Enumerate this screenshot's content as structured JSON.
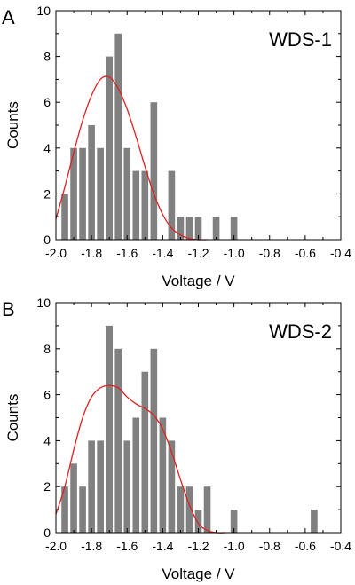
{
  "chart_data": [
    {
      "type": "bar",
      "panel_label": "A",
      "title": "WDS-1",
      "xlabel": "Voltage / V",
      "ylabel": "Counts",
      "xlim": [
        -2.0,
        -0.4
      ],
      "ylim": [
        0,
        10
      ],
      "xticks": [
        "-2.0",
        "-1.8",
        "-1.6",
        "-1.4",
        "-1.2",
        "-1.0",
        "-0.8",
        "-0.6",
        "-0.4"
      ],
      "yticks": [
        "0",
        "2",
        "4",
        "6",
        "8",
        "10"
      ],
      "bin_width": 0.05,
      "bar_color": "#808080",
      "fit_color": "#e02020",
      "series": [
        {
          "x": [
            -1.95,
            -1.9,
            -1.85,
            -1.8,
            -1.75,
            -1.7,
            -1.65,
            -1.6,
            -1.55,
            -1.5,
            -1.45,
            -1.35,
            -1.3,
            -1.25,
            -1.2,
            -1.1,
            -1.0
          ],
          "values": [
            2,
            4,
            4,
            5,
            4,
            8,
            9,
            4,
            3,
            3,
            6,
            3,
            1,
            1,
            1,
            1,
            1
          ]
        }
      ],
      "fit": {
        "x": [
          -2.0,
          -1.95,
          -1.9,
          -1.85,
          -1.8,
          -1.75,
          -1.7,
          -1.65,
          -1.6,
          -1.55,
          -1.5,
          -1.45,
          -1.4,
          -1.35,
          -1.3,
          -1.25,
          -1.2,
          -1.15
        ],
        "y": [
          0.9,
          2.3,
          3.8,
          5.2,
          6.3,
          7.0,
          7.1,
          6.6,
          5.7,
          4.5,
          3.2,
          2.0,
          1.1,
          0.5,
          0.2,
          0.05,
          0.0,
          0.0
        ]
      }
    },
    {
      "type": "bar",
      "panel_label": "B",
      "title": "WDS-2",
      "xlabel": "Voltage / V",
      "ylabel": "Counts",
      "xlim": [
        -2.0,
        -0.4
      ],
      "ylim": [
        0,
        10
      ],
      "xticks": [
        "-2.0",
        "-1.8",
        "-1.6",
        "-1.4",
        "-1.2",
        "-1.0",
        "-0.8",
        "-0.6",
        "-0.4"
      ],
      "yticks": [
        "0",
        "2",
        "4",
        "6",
        "8",
        "10"
      ],
      "bin_width": 0.05,
      "bar_color": "#808080",
      "fit_color": "#e02020",
      "series": [
        {
          "x": [
            -1.95,
            -1.9,
            -1.85,
            -1.8,
            -1.75,
            -1.7,
            -1.65,
            -1.6,
            -1.55,
            -1.5,
            -1.45,
            -1.4,
            -1.35,
            -1.3,
            -1.25,
            -1.2,
            -1.15,
            -1.0,
            -0.55
          ],
          "values": [
            2,
            3,
            2,
            4,
            4,
            9,
            8,
            4,
            5,
            7,
            8,
            5,
            4,
            2,
            2,
            1,
            2,
            1,
            1
          ]
        }
      ],
      "fit": {
        "x": [
          -2.0,
          -1.95,
          -1.9,
          -1.85,
          -1.8,
          -1.75,
          -1.7,
          -1.65,
          -1.6,
          -1.55,
          -1.5,
          -1.45,
          -1.4,
          -1.35,
          -1.3,
          -1.25,
          -1.2,
          -1.15,
          -1.1,
          -1.05
        ],
        "y": [
          0.8,
          2.0,
          3.6,
          5.0,
          5.9,
          6.3,
          6.4,
          6.3,
          5.9,
          5.6,
          5.4,
          5.1,
          4.5,
          3.5,
          2.3,
          1.2,
          0.4,
          0.1,
          0.0,
          0.0
        ]
      }
    }
  ]
}
